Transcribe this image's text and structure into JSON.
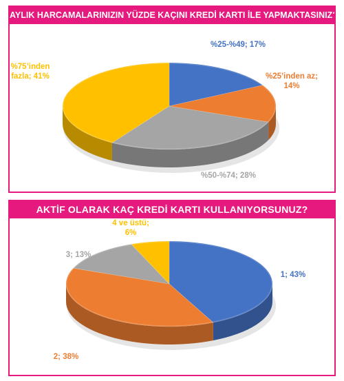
{
  "chart_data": [
    {
      "type": "pie",
      "title": "AYLIK HARCAMALARINIZIN YÜZDE KAÇINI KREDİ KARTI İLE YAPMAKTASINIZ?",
      "categories": [
        "%25-%49",
        "%25’inden az",
        "%50-%74",
        "%75’inden fazla"
      ],
      "values": [
        17,
        14,
        28,
        41
      ],
      "colors": [
        "#4472c4",
        "#ed7d31",
        "#a5a5a5",
        "#ffc000"
      ],
      "labels": [
        {
          "lines": [
            "%25-%49; 17%"
          ]
        },
        {
          "lines": [
            "%25’inden az;",
            "14%"
          ]
        },
        {
          "lines": [
            "%50-%74; 28%"
          ]
        },
        {
          "lines": [
            "%75’inden",
            "fazla; 41%"
          ]
        }
      ]
    },
    {
      "type": "pie",
      "title": "AKTİF OLARAK KAÇ KREDİ KARTI KULLANIYORSUNUZ?",
      "categories": [
        "1",
        "2",
        "3",
        "4 ve üstü"
      ],
      "values": [
        43,
        38,
        13,
        6
      ],
      "colors": [
        "#4472c4",
        "#ed7d31",
        "#a5a5a5",
        "#ffc000"
      ],
      "labels": [
        {
          "lines": [
            "1; 43%"
          ]
        },
        {
          "lines": [
            "2; 38%"
          ]
        },
        {
          "lines": [
            "3; 13%"
          ]
        },
        {
          "lines": [
            "4 ve üstü;",
            "6%"
          ]
        }
      ]
    }
  ]
}
